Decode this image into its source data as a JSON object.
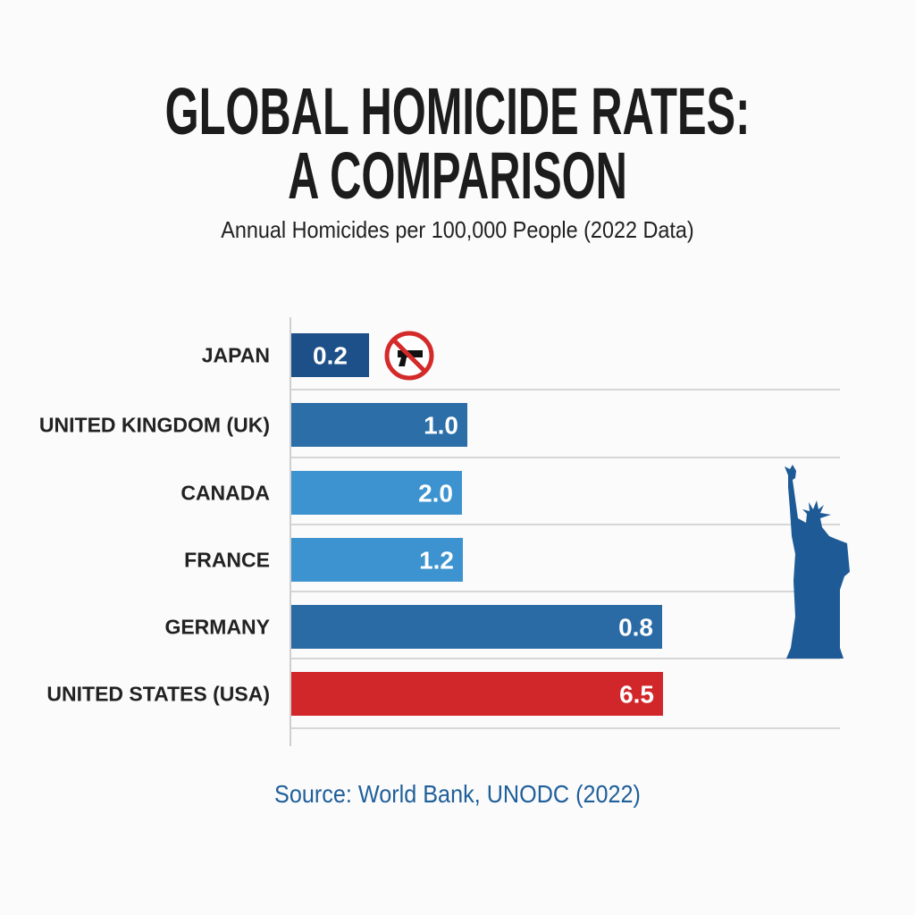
{
  "chart_data": {
    "type": "bar",
    "orientation": "horizontal",
    "title": [
      "GLOBAL HOMICIDE RATES:",
      "A COMPARISON"
    ],
    "subtitle": "Annual Homicides per 100,000 People (2022 Data)",
    "categories": [
      "JAPAN",
      "UNITED KINGDOM (UK)",
      "CANADA",
      "FRANCE",
      "GERMANY",
      "UNITED STATES (USA)"
    ],
    "value_labels": [
      "0.2",
      "1.0",
      "2.0",
      "1.2",
      "0.8",
      "6.5"
    ],
    "values": [
      0.2,
      1.0,
      2.0,
      1.2,
      0.8,
      6.5
    ],
    "colors": [
      "#1d4f88",
      "#2b6ea8",
      "#3d93cf",
      "#3d93cf",
      "#2a6aa5",
      "#d1262a"
    ],
    "grid": true,
    "icons": [
      "no-gun-icon",
      "statue-of-liberty-icon"
    ],
    "source": "Source: World Bank, UNODC (2022)"
  }
}
